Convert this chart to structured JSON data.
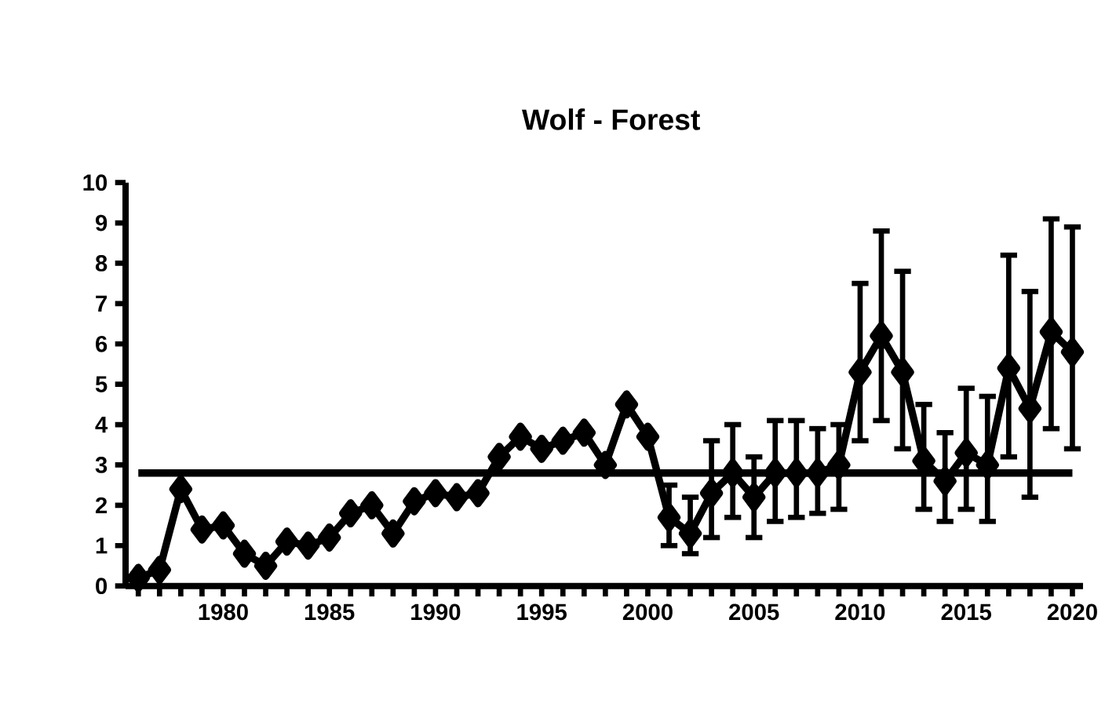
{
  "chart_data": {
    "type": "line",
    "title": "Wolf - Forest",
    "x": [
      1976,
      1977,
      1978,
      1979,
      1980,
      1981,
      1982,
      1983,
      1984,
      1985,
      1986,
      1987,
      1988,
      1989,
      1990,
      1991,
      1992,
      1993,
      1994,
      1995,
      1996,
      1997,
      1998,
      1999,
      2000,
      2001,
      2002,
      2003,
      2004,
      2005,
      2006,
      2007,
      2008,
      2009,
      2010,
      2011,
      2012,
      2013,
      2014,
      2015,
      2016,
      2017,
      2018,
      2019,
      2020
    ],
    "series": [
      {
        "color": "#000000",
        "values": [
          0.2,
          0.4,
          2.4,
          1.4,
          1.5,
          0.8,
          0.5,
          1.1,
          1.0,
          1.2,
          1.8,
          2.0,
          1.3,
          2.1,
          2.3,
          2.2,
          2.3,
          3.2,
          3.7,
          3.4,
          3.6,
          3.8,
          3.0,
          4.5,
          3.7,
          1.7,
          1.3,
          2.3,
          2.8,
          2.2,
          2.8,
          2.8,
          2.8,
          3.0,
          5.3,
          6.2,
          5.3,
          3.1,
          2.6,
          3.3,
          3.0,
          5.4,
          4.4,
          6.3,
          5.8
        ],
        "errors": [
          null,
          null,
          null,
          null,
          null,
          null,
          null,
          null,
          null,
          null,
          null,
          null,
          null,
          null,
          null,
          null,
          null,
          null,
          null,
          null,
          null,
          null,
          null,
          null,
          null,
          [
            1.0,
            2.5
          ],
          [
            0.8,
            2.2
          ],
          [
            1.2,
            3.6
          ],
          [
            1.7,
            4.0
          ],
          [
            1.2,
            3.2
          ],
          [
            1.6,
            4.1
          ],
          [
            1.7,
            4.1
          ],
          [
            1.8,
            3.9
          ],
          [
            1.9,
            4.0
          ],
          [
            3.6,
            7.5
          ],
          [
            4.1,
            8.8
          ],
          [
            3.4,
            7.8
          ],
          [
            1.9,
            4.5
          ],
          [
            1.6,
            3.8
          ],
          [
            1.9,
            4.9
          ],
          [
            1.6,
            4.7
          ],
          [
            3.2,
            8.2
          ],
          [
            2.2,
            7.3
          ],
          [
            3.9,
            9.1
          ],
          [
            3.4,
            8.9
          ]
        ]
      }
    ],
    "xlim": [
      1975.4,
      2020.5
    ],
    "xticks": [
      {
        "value": 1976,
        "label": null
      },
      {
        "value": 1977,
        "label": null
      },
      {
        "value": 1978,
        "label": null
      },
      {
        "value": 1979,
        "label": null
      },
      1980,
      {
        "value": 1981,
        "label": null
      },
      {
        "value": 1982,
        "label": null
      },
      {
        "value": 1983,
        "label": null
      },
      {
        "value": 1984,
        "label": null
      },
      1985,
      {
        "value": 1986,
        "label": null
      },
      {
        "value": 1987,
        "label": null
      },
      {
        "value": 1988,
        "label": null
      },
      {
        "value": 1989,
        "label": null
      },
      1990,
      {
        "value": 1991,
        "label": null
      },
      {
        "value": 1992,
        "label": null
      },
      {
        "value": 1993,
        "label": null
      },
      {
        "value": 1994,
        "label": null
      },
      1995,
      {
        "value": 1996,
        "label": null
      },
      {
        "value": 1997,
        "label": null
      },
      {
        "value": 1998,
        "label": null
      },
      {
        "value": 1999,
        "label": null
      },
      2000,
      {
        "value": 2001,
        "label": null
      },
      {
        "value": 2002,
        "label": null
      },
      {
        "value": 2003,
        "label": null
      },
      {
        "value": 2004,
        "label": null
      },
      2005,
      {
        "value": 2006,
        "label": null
      },
      {
        "value": 2007,
        "label": null
      },
      {
        "value": 2008,
        "label": null
      },
      {
        "value": 2009,
        "label": null
      },
      2010,
      {
        "value": 2011,
        "label": null
      },
      {
        "value": 2012,
        "label": null
      },
      {
        "value": 2013,
        "label": null
      },
      {
        "value": 2014,
        "label": null
      },
      2015,
      {
        "value": 2016,
        "label": null
      },
      {
        "value": 2017,
        "label": null
      },
      {
        "value": 2018,
        "label": null
      },
      {
        "value": 2019,
        "label": null
      },
      2020
    ],
    "ylim": [
      0,
      10
    ],
    "yticks": [
      0,
      1,
      2,
      3,
      4,
      5,
      6,
      7,
      8,
      9,
      10
    ],
    "ref_lines": [
      {
        "axis": "y",
        "value": 2.8,
        "color": "#000000"
      }
    ],
    "marker": "diamond",
    "line_style": "solid"
  }
}
